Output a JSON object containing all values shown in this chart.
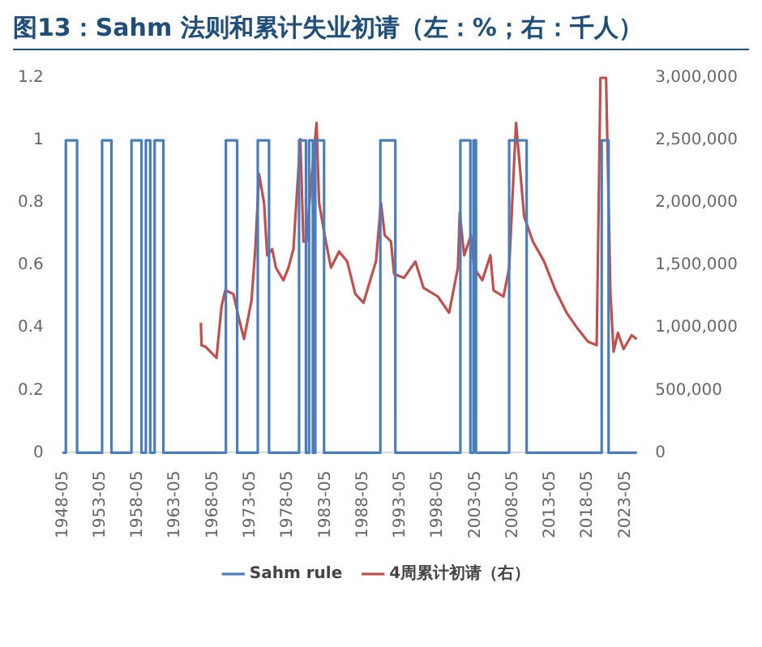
{
  "chart_data": {
    "type": "line",
    "title": "图13：Sahm 法则和累计失业初请（左：%；右：千人）",
    "xlim": [
      "1948-03",
      "2024-12"
    ],
    "xticks": [
      "1948-05",
      "1953-05",
      "1958-05",
      "1963-05",
      "1968-05",
      "1973-05",
      "1978-05",
      "1983-05",
      "1988-05",
      "1993-05",
      "1998-05",
      "2003-05",
      "2008-05",
      "2013-05",
      "2018-05",
      "2023-05"
    ],
    "ylim": [
      0,
      1.2
    ],
    "yticks": [
      0,
      0.2,
      0.4,
      0.6,
      0.8,
      1,
      1.2
    ],
    "y2lim": [
      0,
      3000000
    ],
    "y2ticks": [
      {
        "value": 0,
        "label": "0"
      },
      {
        "value": 500000,
        "label": "500,000"
      },
      {
        "value": 1000000,
        "label": "1,000,000"
      },
      {
        "value": 1500000,
        "label": "1,500,000"
      },
      {
        "value": 2000000,
        "label": "2,000,000"
      },
      {
        "value": 2500000,
        "label": "2,500,000"
      },
      {
        "value": 3000000,
        "label": "3,000,000"
      }
    ],
    "legend": "bottom",
    "grid": false,
    "series": [
      {
        "name": "Sahm rule",
        "type": "step",
        "color": "#4a7ebb",
        "x": [
          "1948-05",
          "1948-10",
          "1950-04",
          "1953-08",
          "1954-11",
          "1957-07",
          "1958-11",
          "1959-06",
          "1960-01",
          "1960-08",
          "1961-10",
          "1970-02",
          "1971-08",
          "1974-05",
          "1975-11",
          "1979-11",
          "1980-10",
          "1981-03",
          "1981-09",
          "1982-01",
          "1983-03",
          "1990-09",
          "1992-09",
          "2001-05",
          "2002-09",
          "2003-02",
          "2003-06",
          "2007-11",
          "2010-03",
          "2020-03",
          "2021-02",
          "2024-11"
        ],
        "values": [
          0,
          1,
          0,
          1,
          0,
          1,
          0,
          1,
          0,
          1,
          0,
          1,
          0,
          1,
          0,
          1,
          0,
          1,
          0,
          1,
          0,
          1,
          0,
          1,
          0,
          1,
          0,
          1,
          0,
          1,
          0,
          0
        ]
      },
      {
        "name": "4周累计初请（右）",
        "axis": "y2",
        "color": "#c0504d",
        "x": [
          "1966-10",
          "1966-11",
          "1967-05",
          "1968-11",
          "1969-07",
          "1970-01",
          "1971-02",
          "1971-11",
          "1972-07",
          "1973-07",
          "1974-01",
          "1974-07",
          "1975-03",
          "1975-08",
          "1976-04",
          "1976-10",
          "1977-10",
          "1978-06",
          "1979-02",
          "1980-01",
          "1980-06",
          "1980-11",
          "1981-06",
          "1982-03",
          "1982-07",
          "1983-04",
          "1984-02",
          "1985-03",
          "1986-04",
          "1987-05",
          "1988-06",
          "1989-09",
          "1990-02",
          "1990-10",
          "1991-04",
          "1992-02",
          "1992-07",
          "1993-11",
          "1995-05",
          "1996-06",
          "1998-05",
          "1999-11",
          "2001-01",
          "2001-04",
          "2001-11",
          "2002-10",
          "2003-03",
          "2004-04",
          "2005-05",
          "2005-10",
          "2007-02",
          "2007-11",
          "2008-10",
          "2009-11",
          "2011-01",
          "2012-07",
          "2014-01",
          "2015-07",
          "2017-01",
          "2018-05",
          "2019-07",
          "2020-01",
          "2020-10",
          "2021-05",
          "2021-10",
          "2022-05",
          "2023-02",
          "2024-03",
          "2024-11"
        ],
        "values": [
          1040000,
          860000,
          850000,
          760000,
          1170000,
          1300000,
          1270000,
          1070000,
          910000,
          1220000,
          1630000,
          2230000,
          2000000,
          1580000,
          1630000,
          1480000,
          1380000,
          1480000,
          1630000,
          2510000,
          1690000,
          1690000,
          2150000,
          2640000,
          2000000,
          1740000,
          1480000,
          1610000,
          1530000,
          1270000,
          1200000,
          1450000,
          1530000,
          2000000,
          1740000,
          1690000,
          1430000,
          1400000,
          1530000,
          1320000,
          1250000,
          1120000,
          1480000,
          1920000,
          1580000,
          1740000,
          1480000,
          1380000,
          1580000,
          1300000,
          1250000,
          1480000,
          2640000,
          1890000,
          1690000,
          1530000,
          1300000,
          1120000,
          990000,
          890000,
          860000,
          3000000,
          3000000,
          1270000,
          810000,
          960000,
          830000,
          940000,
          910000
        ]
      }
    ]
  }
}
